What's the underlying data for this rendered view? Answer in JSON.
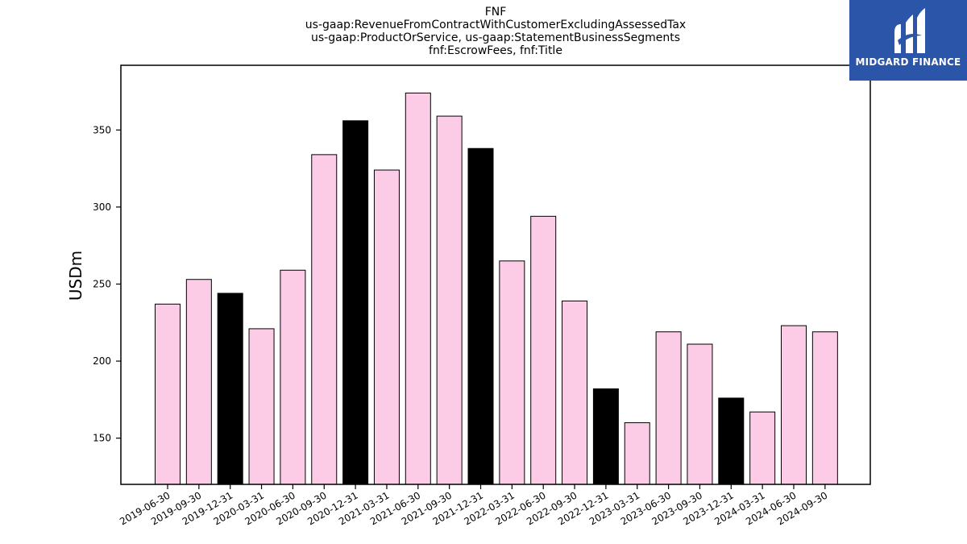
{
  "chart_data": {
    "type": "bar",
    "title_lines": [
      "FNF",
      "us-gaap:RevenueFromContractWithCustomerExcludingAssessedTax",
      "us-gaap:ProductOrService, us-gaap:StatementBusinessSegments",
      "fnf:EscrowFees, fnf:Title"
    ],
    "ylabel": "USDm",
    "xlabel": "",
    "ylim": [
      120,
      392
    ],
    "yticks": [
      150,
      200,
      250,
      300,
      350
    ],
    "categories": [
      "2019-06-30",
      "2019-09-30",
      "2019-12-31",
      "2020-03-31",
      "2020-06-30",
      "2020-09-30",
      "2020-12-31",
      "2021-03-31",
      "2021-06-30",
      "2021-09-30",
      "2021-12-31",
      "2022-03-31",
      "2022-06-30",
      "2022-09-30",
      "2022-12-31",
      "2023-03-31",
      "2023-06-30",
      "2023-09-30",
      "2023-12-31",
      "2024-03-31",
      "2024-06-30",
      "2024-09-30"
    ],
    "values": [
      237,
      253,
      244,
      221,
      259,
      334,
      356,
      324,
      374,
      359,
      338,
      265,
      294,
      239,
      182,
      160,
      219,
      211,
      176,
      167,
      223,
      219
    ],
    "highlight": [
      false,
      false,
      true,
      false,
      false,
      false,
      true,
      false,
      false,
      false,
      true,
      false,
      false,
      false,
      true,
      false,
      false,
      false,
      true,
      false,
      false,
      false
    ],
    "colors": {
      "bar": "#fccce6",
      "highlight": "#000000",
      "edge": "#000000"
    },
    "grid": false
  },
  "logo": {
    "text": "MIDGARD FINANCE",
    "background": "#2a55a8"
  }
}
